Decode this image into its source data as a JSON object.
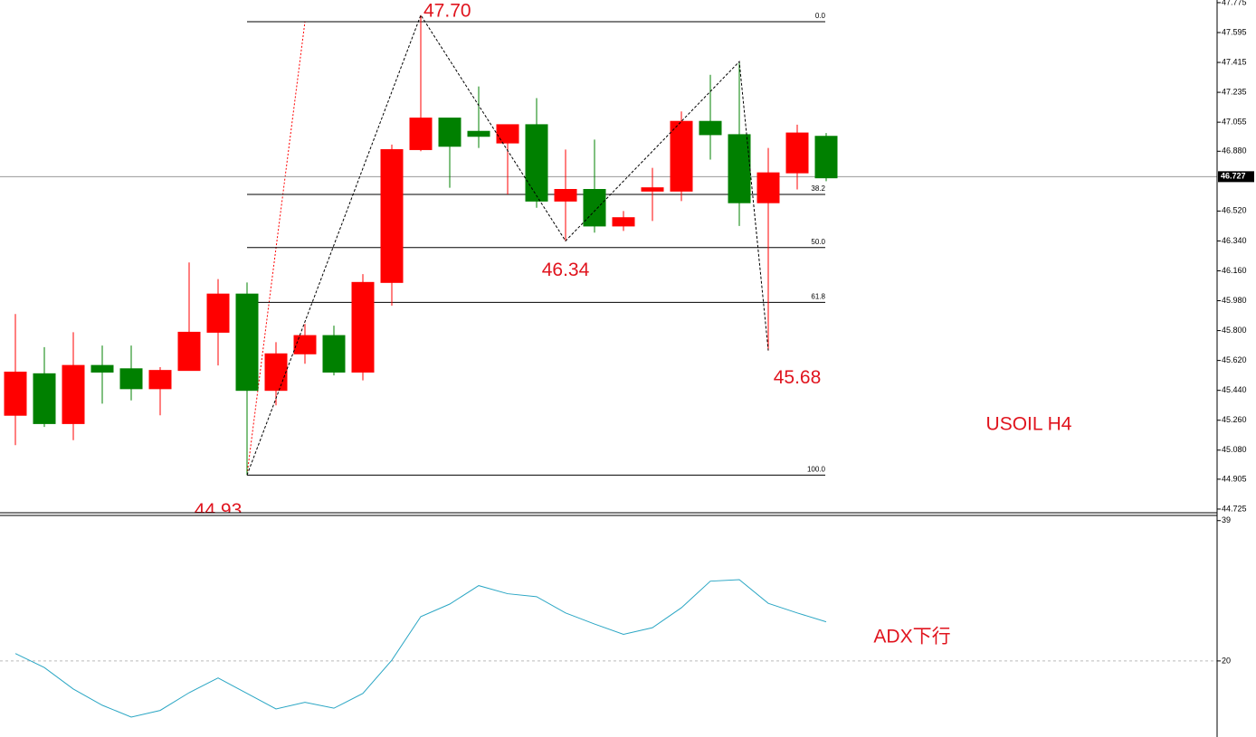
{
  "chart_data": [
    {
      "type": "candlestick",
      "open": [
        45.29,
        45.54,
        45.24,
        45.59,
        45.57,
        45.45,
        45.56,
        45.79,
        46.02,
        45.44,
        45.66,
        45.77,
        45.55,
        46.09,
        46.89,
        47.08,
        47.0,
        46.93,
        47.04,
        46.58,
        46.65,
        46.43,
        46.64,
        46.64,
        47.06,
        46.98,
        46.57,
        46.75,
        46.97
      ],
      "high": [
        45.9,
        45.7,
        45.79,
        45.71,
        45.71,
        45.58,
        46.21,
        46.11,
        46.09,
        45.73,
        45.84,
        45.83,
        46.14,
        46.92,
        47.7,
        47.08,
        47.27,
        47.04,
        47.2,
        46.89,
        46.95,
        46.52,
        46.78,
        47.12,
        47.34,
        47.42,
        46.9,
        47.04,
        46.99
      ],
      "low": [
        45.11,
        45.22,
        45.14,
        45.36,
        45.38,
        45.29,
        45.56,
        45.59,
        44.93,
        45.35,
        45.6,
        45.53,
        45.5,
        45.95,
        46.88,
        46.66,
        46.9,
        46.62,
        46.54,
        46.34,
        46.39,
        46.4,
        46.46,
        46.58,
        46.83,
        46.43,
        45.68,
        46.65,
        46.7
      ],
      "close": [
        45.55,
        45.24,
        45.59,
        45.55,
        45.45,
        45.56,
        45.79,
        46.02,
        45.44,
        45.66,
        45.77,
        45.55,
        46.09,
        46.89,
        47.08,
        46.91,
        46.97,
        47.04,
        46.58,
        46.65,
        46.43,
        46.48,
        46.66,
        47.06,
        46.98,
        46.57,
        46.75,
        46.99,
        46.72
      ],
      "up_color": "#ff0000",
      "down_color": "#008000",
      "ylim": [
        44.703,
        47.791
      ],
      "yticks": [
        47.775,
        47.595,
        47.415,
        47.235,
        47.055,
        {
          "value": 46.88,
          "label": "46.880"
        },
        {
          "value": 46.52,
          "label": "46.520"
        },
        {
          "value": 46.34,
          "label": "46.340"
        },
        {
          "value": 46.16,
          "label": "46.160"
        },
        {
          "value": 45.98,
          "label": "45.980"
        },
        {
          "value": 45.8,
          "label": "45.800"
        },
        {
          "value": 45.62,
          "label": "45.620"
        },
        {
          "value": 45.44,
          "label": "45.440"
        },
        {
          "value": 45.26,
          "label": "45.260"
        },
        {
          "value": 45.08,
          "label": "45.080"
        },
        44.905,
        44.725
      ],
      "last_price": 46.727,
      "fib_levels": [
        {
          "value": 47.66,
          "label": "0.0"
        },
        {
          "value": 46.62,
          "label": "38.2"
        },
        {
          "value": 46.3,
          "label": "50.0"
        },
        {
          "value": 45.97,
          "label": "61.8"
        },
        {
          "value": 44.93,
          "label": "100.0"
        }
      ],
      "annotations": [
        {
          "value": 47.7,
          "label": "47.70"
        },
        {
          "value": 46.34,
          "label": "46.34"
        },
        {
          "value": 45.68,
          "label": "45.68"
        },
        {
          "value": 44.93,
          "label": "44.93"
        }
      ],
      "text": "USOIL H4"
    },
    {
      "type": "line",
      "values": [
        21.0,
        19.1,
        16.2,
        14.0,
        12.4,
        13.3,
        15.7,
        17.7,
        15.6,
        13.5,
        14.4,
        13.6,
        15.6,
        20.1,
        26.0,
        27.7,
        30.2,
        29.1,
        28.7,
        26.5,
        25.0,
        23.6,
        24.5,
        27.2,
        30.8,
        31.0,
        27.8,
        26.5,
        25.3
      ],
      "color": "#2aa6c4",
      "ylim": [
        9.7,
        39.7
      ],
      "yticks": [
        20,
        39
      ],
      "levels": [
        20
      ],
      "text": "ADX下行"
    }
  ]
}
